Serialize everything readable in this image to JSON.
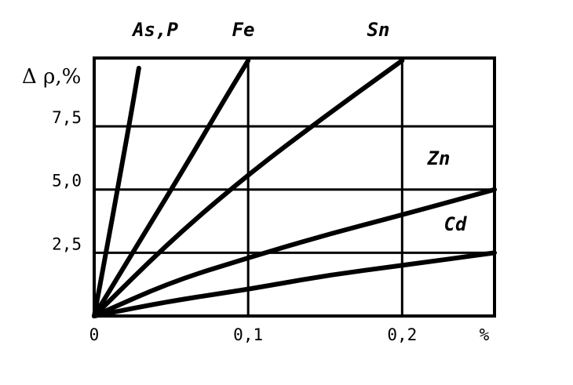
{
  "chart_data": {
    "type": "line",
    "ylabel": "Δ ρ,%",
    "xlabel": "",
    "x_unit_label": "%",
    "xlim": [
      0,
      0.26
    ],
    "ylim": [
      0,
      10.2
    ],
    "x_ticks": [
      {
        "value": 0,
        "label": "0"
      },
      {
        "value": 0.1,
        "label": "0,1"
      },
      {
        "value": 0.2,
        "label": "0,2"
      }
    ],
    "y_ticks": [
      {
        "value": 2.5,
        "label": "2,5"
      },
      {
        "value": 5.0,
        "label": "5,0"
      },
      {
        "value": 7.5,
        "label": "7,5"
      }
    ],
    "grid": true,
    "series": [
      {
        "name": "As,P",
        "x": [
          0,
          0.008,
          0.016,
          0.024,
          0.029
        ],
        "y": [
          0,
          2.6,
          5.3,
          8.0,
          9.8
        ]
      },
      {
        "name": "Fe",
        "x": [
          0,
          0.03,
          0.06,
          0.085,
          0.1
        ],
        "y": [
          0,
          3.0,
          6.0,
          8.6,
          10.1
        ]
      },
      {
        "name": "Sn",
        "x": [
          0,
          0.05,
          0.1,
          0.15,
          0.2
        ],
        "y": [
          0,
          3.0,
          5.6,
          7.9,
          10.1
        ]
      },
      {
        "name": "Zn",
        "x": [
          0,
          0.05,
          0.1,
          0.15,
          0.2,
          0.26
        ],
        "y": [
          0,
          1.35,
          2.3,
          3.2,
          4.0,
          5.0
        ]
      },
      {
        "name": "Cd",
        "x": [
          0,
          0.05,
          0.1,
          0.15,
          0.2,
          0.26
        ],
        "y": [
          0,
          0.6,
          1.05,
          1.6,
          2.0,
          2.5
        ]
      }
    ],
    "series_labels_top": [
      "As,P",
      "Fe",
      "Sn"
    ],
    "series_labels_inside": [
      "Zn",
      "Cd"
    ]
  }
}
